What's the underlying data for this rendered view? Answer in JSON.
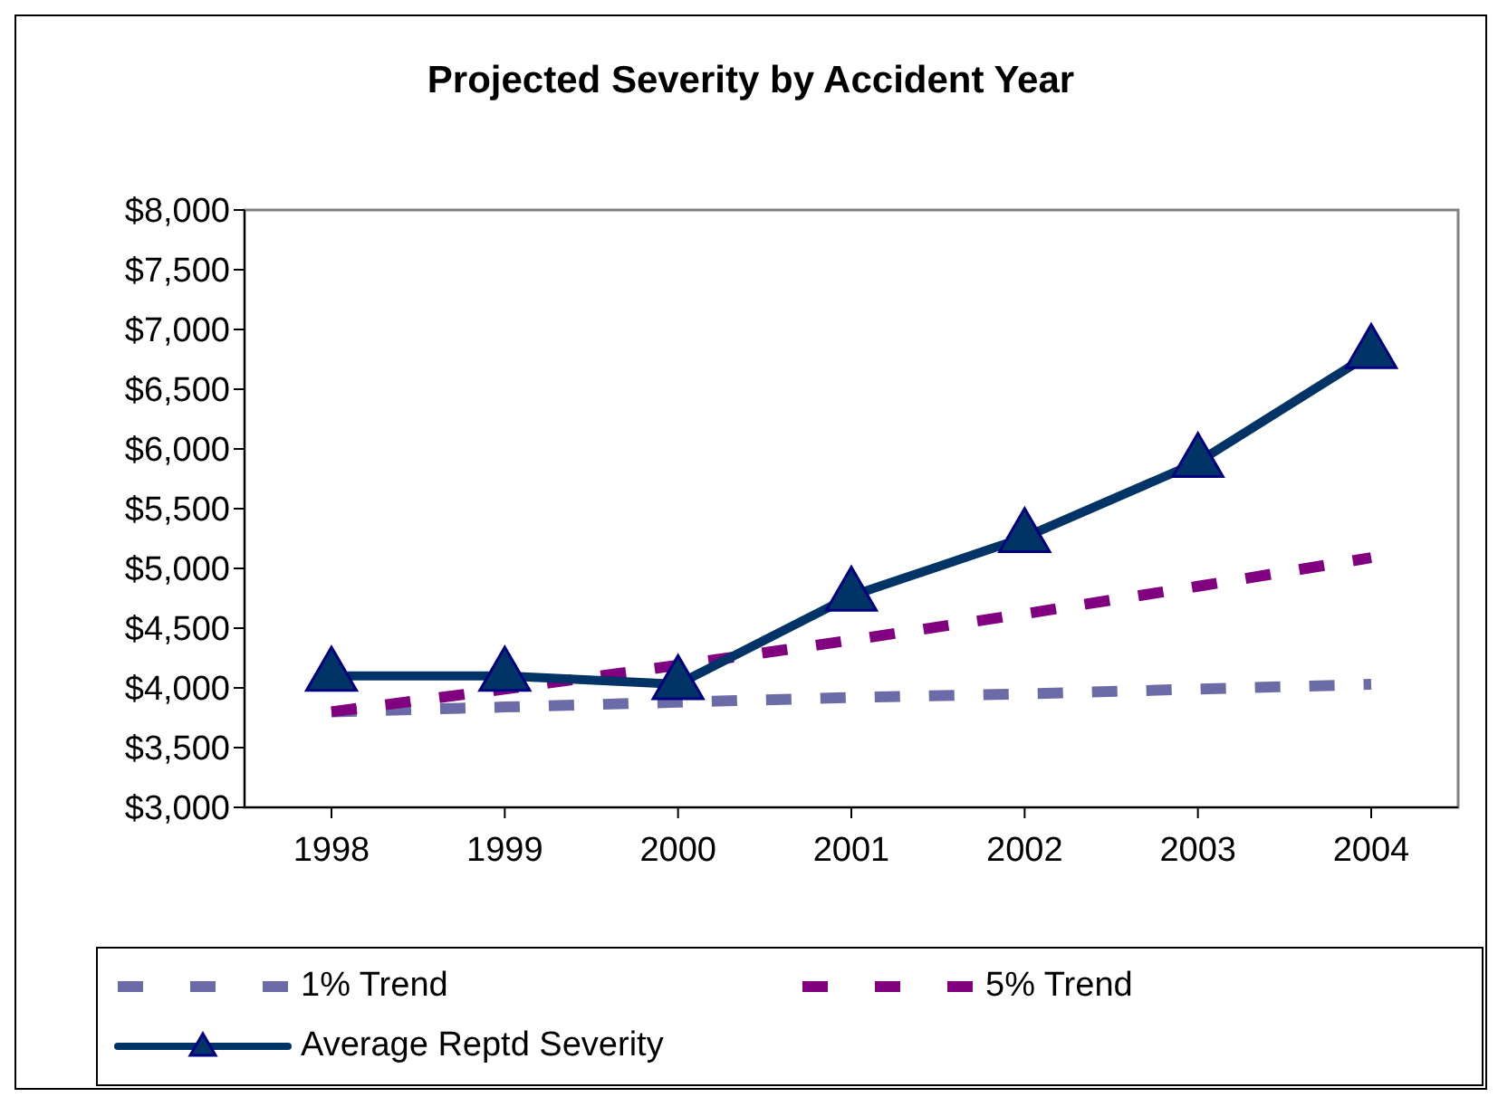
{
  "chart_data": {
    "type": "line",
    "title": "Projected Severity by Accident Year",
    "categories": [
      "1998",
      "1999",
      "2000",
      "2001",
      "2002",
      "2003",
      "2004"
    ],
    "series": [
      {
        "name": "1% Trend",
        "color": "#6b6ba8",
        "line_style": "dashed",
        "marker": "none",
        "values": [
          3800,
          3840,
          3880,
          3920,
          3950,
          3990,
          4030
        ]
      },
      {
        "name": "5% Trend",
        "color": "#800080",
        "line_style": "dashed",
        "marker": "none",
        "values": [
          3800,
          3990,
          4190,
          4400,
          4620,
          4850,
          5090
        ]
      },
      {
        "name": "Average Reptd Severity",
        "color": "#003366",
        "line_style": "solid",
        "marker": "triangle",
        "values": [
          4100,
          4100,
          4030,
          4770,
          5260,
          5890,
          6800
        ]
      }
    ],
    "ylim": [
      3000,
      8000
    ],
    "yticks": [
      {
        "value": 3000,
        "label": "$3,000"
      },
      {
        "value": 3500,
        "label": "$3,500"
      },
      {
        "value": 4000,
        "label": "$4,000"
      },
      {
        "value": 4500,
        "label": "$4,500"
      },
      {
        "value": 5000,
        "label": "$5,000"
      },
      {
        "value": 5500,
        "label": "$5,500"
      },
      {
        "value": 6000,
        "label": "$6,000"
      },
      {
        "value": 6500,
        "label": "$6,500"
      },
      {
        "value": 7000,
        "label": "$7,000"
      },
      {
        "value": 7500,
        "label": "$7,500"
      },
      {
        "value": 8000,
        "label": "$8,000"
      }
    ],
    "grid": false,
    "legend": "bottom"
  }
}
